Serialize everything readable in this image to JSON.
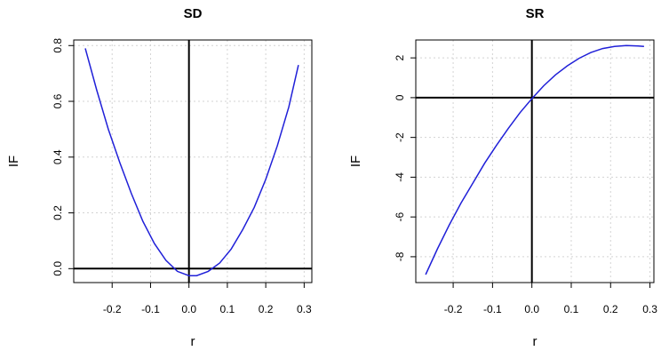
{
  "chart_data": [
    {
      "type": "line",
      "title": "SD",
      "xlabel": "r",
      "ylabel": "IF",
      "xlim": [
        -0.3,
        0.32
      ],
      "ylim": [
        -0.05,
        0.82
      ],
      "xticks": [
        -0.2,
        -0.1,
        0.0,
        0.1,
        0.2,
        0.3
      ],
      "xtick_labels": [
        "-0.2",
        "-0.1",
        "0.0",
        "0.1",
        "0.2",
        "0.3"
      ],
      "yticks": [
        0.0,
        0.2,
        0.4,
        0.6,
        0.8
      ],
      "ytick_labels": [
        "0.0",
        "0.2",
        "0.4",
        "0.6",
        "0.8"
      ],
      "grid": true,
      "reference_lines": {
        "x": 0,
        "y": 0
      },
      "series_color": "#2020d8",
      "series": [
        {
          "x": [
            -0.27,
            -0.24,
            -0.21,
            -0.18,
            -0.15,
            -0.12,
            -0.09,
            -0.06,
            -0.03,
            0.0,
            0.02,
            0.05,
            0.08,
            0.11,
            0.14,
            0.17,
            0.2,
            0.23,
            0.26,
            0.285
          ],
          "y": [
            0.79,
            0.64,
            0.5,
            0.38,
            0.27,
            0.17,
            0.09,
            0.03,
            -0.01,
            -0.025,
            -0.025,
            -0.01,
            0.02,
            0.07,
            0.14,
            0.22,
            0.32,
            0.44,
            0.58,
            0.73
          ]
        }
      ]
    },
    {
      "type": "line",
      "title": "SR",
      "xlabel": "r",
      "ylabel": "IF",
      "xlim": [
        -0.295,
        0.31
      ],
      "ylim": [
        -9.3,
        2.9
      ],
      "xticks": [
        -0.2,
        -0.1,
        0.0,
        0.1,
        0.2,
        0.3
      ],
      "xtick_labels": [
        "-0.2",
        "-0.1",
        "0.0",
        "0.1",
        "0.2",
        "0.3"
      ],
      "yticks": [
        -8,
        -6,
        -4,
        -2,
        0,
        2
      ],
      "ytick_labels": [
        "-8",
        "-6",
        "-4",
        "-2",
        "0",
        "2"
      ],
      "grid": true,
      "reference_lines": {
        "x": 0,
        "y": 0
      },
      "series_color": "#2020d8",
      "series": [
        {
          "x": [
            -0.27,
            -0.24,
            -0.21,
            -0.18,
            -0.15,
            -0.12,
            -0.09,
            -0.06,
            -0.03,
            0.0,
            0.03,
            0.06,
            0.09,
            0.12,
            0.15,
            0.18,
            0.21,
            0.24,
            0.27,
            0.285
          ],
          "y": [
            -8.9,
            -7.6,
            -6.4,
            -5.3,
            -4.3,
            -3.3,
            -2.4,
            -1.55,
            -0.75,
            -0.05,
            0.6,
            1.15,
            1.6,
            1.98,
            2.27,
            2.47,
            2.58,
            2.62,
            2.6,
            2.58
          ]
        }
      ]
    }
  ]
}
